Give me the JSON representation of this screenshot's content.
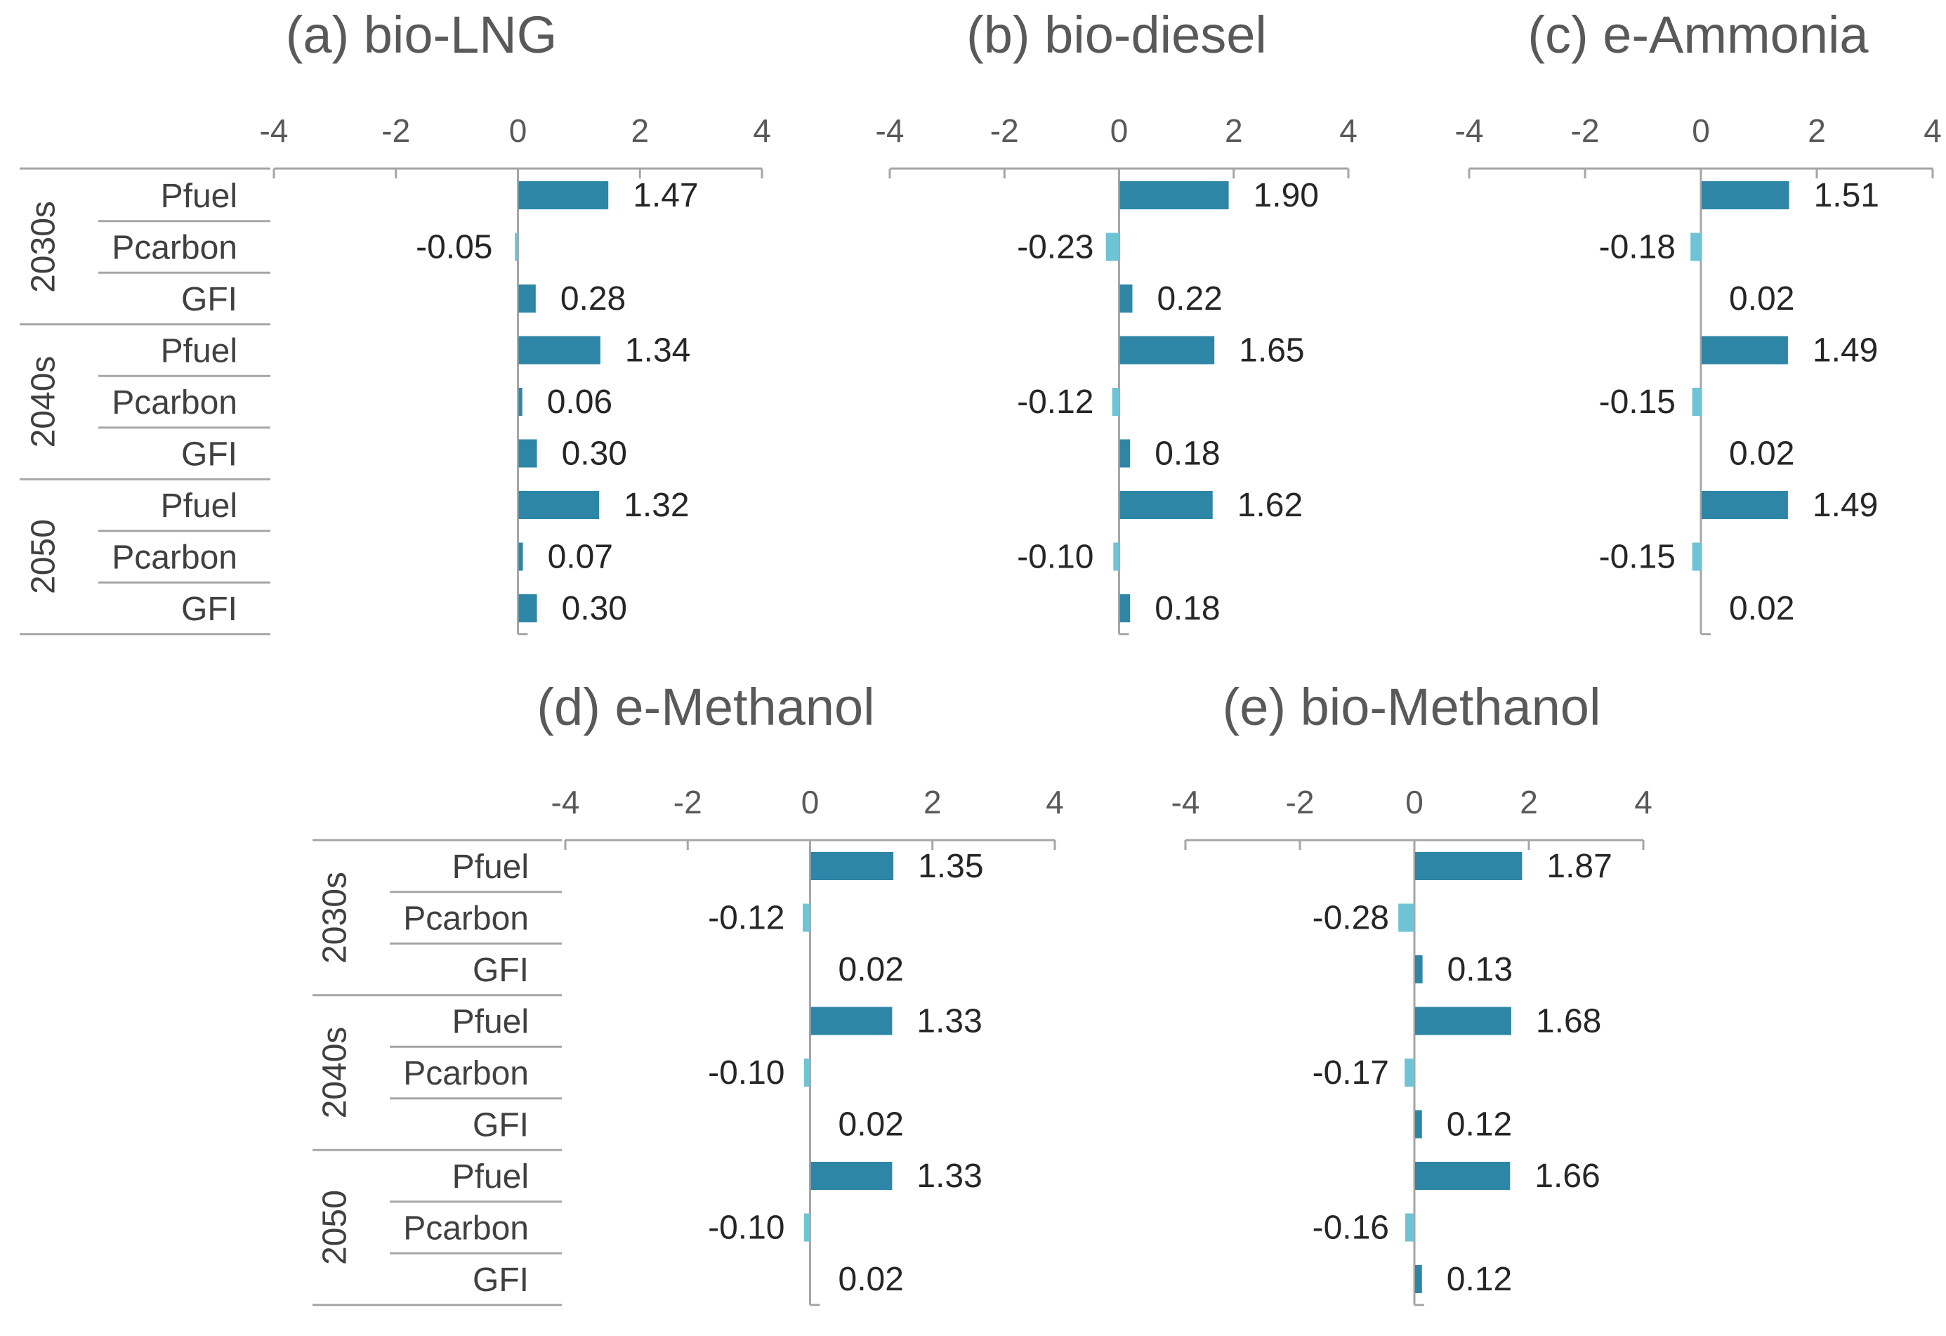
{
  "colors": {
    "positive": "#2e86a6",
    "negative": "#6ec3d4"
  },
  "chart_data": [
    {
      "type": "bar",
      "orientation": "horizontal",
      "title": "(a) bio-LNG",
      "xlim": [
        -4,
        4
      ],
      "xticks": [
        "-4",
        "-2",
        "0",
        "2",
        "4"
      ],
      "groups": [
        "2030s",
        "2040s",
        "2050"
      ],
      "categories": [
        "Pfuel",
        "Pcarbon",
        "GFI"
      ],
      "values": [
        1.47,
        -0.05,
        0.28,
        1.34,
        0.06,
        0.3,
        1.32,
        0.07,
        0.3
      ],
      "labels": [
        "1.47",
        "-0.05",
        "0.28",
        "1.34",
        "0.06",
        "0.30",
        "1.32",
        "0.07",
        "0.30"
      ]
    },
    {
      "type": "bar",
      "orientation": "horizontal",
      "title": "(b) bio-diesel",
      "xlim": [
        -4,
        4
      ],
      "xticks": [
        "-4",
        "-2",
        "0",
        "2",
        "4"
      ],
      "groups": [
        "2030s",
        "2040s",
        "2050"
      ],
      "categories": [
        "Pfuel",
        "Pcarbon",
        "GFI"
      ],
      "values": [
        1.9,
        -0.23,
        0.22,
        1.65,
        -0.12,
        0.18,
        1.62,
        -0.1,
        0.18
      ],
      "labels": [
        "1.90",
        "-0.23",
        "0.22",
        "1.65",
        "-0.12",
        "0.18",
        "1.62",
        "-0.10",
        "0.18"
      ]
    },
    {
      "type": "bar",
      "orientation": "horizontal",
      "title": "(c) e-Ammonia",
      "xlim": [
        -4,
        4
      ],
      "xticks": [
        "-4",
        "-2",
        "0",
        "2",
        "4"
      ],
      "groups": [
        "2030s",
        "2040s",
        "2050"
      ],
      "categories": [
        "Pfuel",
        "Pcarbon",
        "GFI"
      ],
      "values": [
        1.51,
        -0.18,
        0.02,
        1.49,
        -0.15,
        0.02,
        1.49,
        -0.15,
        0.02
      ],
      "labels": [
        "1.51",
        "-0.18",
        "0.02",
        "1.49",
        "-0.15",
        "0.02",
        "1.49",
        "-0.15",
        "0.02"
      ]
    },
    {
      "type": "bar",
      "orientation": "horizontal",
      "title": "(d) e-Methanol",
      "xlim": [
        -4,
        4
      ],
      "xticks": [
        "-4",
        "-2",
        "0",
        "2",
        "4"
      ],
      "groups": [
        "2030s",
        "2040s",
        "2050"
      ],
      "categories": [
        "Pfuel",
        "Pcarbon",
        "GFI"
      ],
      "values": [
        1.35,
        -0.12,
        0.02,
        1.33,
        -0.1,
        0.02,
        1.33,
        -0.1,
        0.02
      ],
      "labels": [
        "1.35",
        "-0.12",
        "0.02",
        "1.33",
        "-0.10",
        "0.02",
        "1.33",
        "-0.10",
        "0.02"
      ]
    },
    {
      "type": "bar",
      "orientation": "horizontal",
      "title": "(e) bio-Methanol",
      "xlim": [
        -4,
        4
      ],
      "xticks": [
        "-4",
        "-2",
        "0",
        "2",
        "4"
      ],
      "groups": [
        "2030s",
        "2040s",
        "2050"
      ],
      "categories": [
        "Pfuel",
        "Pcarbon",
        "GFI"
      ],
      "values": [
        1.87,
        -0.28,
        0.13,
        1.68,
        -0.17,
        0.12,
        1.66,
        -0.16,
        0.12
      ],
      "labels": [
        "1.87",
        "-0.28",
        "0.13",
        "1.68",
        "-0.17",
        "0.12",
        "1.66",
        "-0.16",
        "0.12"
      ]
    }
  ]
}
